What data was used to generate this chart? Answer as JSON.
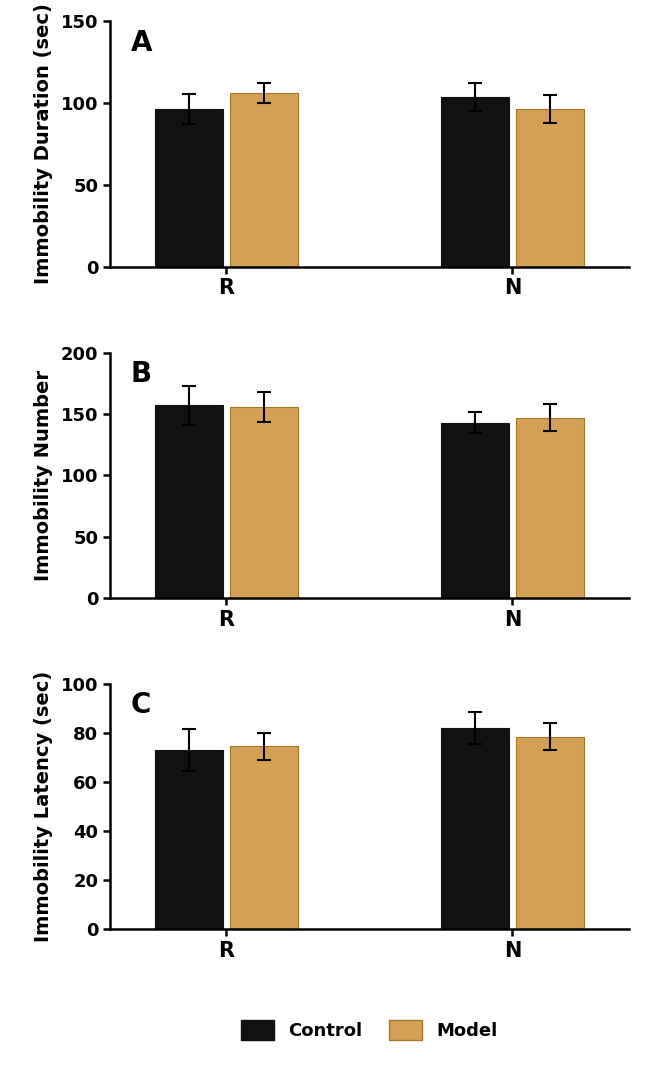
{
  "panels": [
    {
      "label": "A",
      "ylabel": "Immobility Duration (sec)",
      "ylim": [
        0,
        150
      ],
      "yticks": [
        0,
        50,
        100,
        150
      ],
      "groups": [
        "R",
        "N"
      ],
      "control_means": [
        96.5,
        103.5
      ],
      "model_means": [
        106.0,
        96.5
      ],
      "control_errors": [
        9.0,
        8.5
      ],
      "model_errors": [
        6.0,
        8.5
      ]
    },
    {
      "label": "B",
      "ylabel": "Immobility Number",
      "ylim": [
        0,
        200
      ],
      "yticks": [
        0,
        50,
        100,
        150,
        200
      ],
      "groups": [
        "R",
        "N"
      ],
      "control_means": [
        157.0,
        143.0
      ],
      "model_means": [
        155.5,
        147.0
      ],
      "control_errors": [
        16.0,
        8.5
      ],
      "model_errors": [
        12.0,
        11.0
      ]
    },
    {
      "label": "C",
      "ylabel": "Immobility Latency (sec)",
      "ylim": [
        0,
        100
      ],
      "yticks": [
        0,
        20,
        40,
        60,
        80,
        100
      ],
      "groups": [
        "R",
        "N"
      ],
      "control_means": [
        73.0,
        82.0
      ],
      "model_means": [
        74.5,
        78.5
      ],
      "control_errors": [
        8.5,
        6.5
      ],
      "model_errors": [
        5.5,
        5.5
      ]
    }
  ],
  "control_color": "#111111",
  "model_color": "#D4A055",
  "model_edge_color": "#A07828",
  "bar_width": 0.38,
  "group_centers": [
    1.0,
    2.6
  ],
  "xlim": [
    0.35,
    3.25
  ],
  "legend_labels": [
    "Control",
    "Model"
  ],
  "background_color": "#ffffff",
  "ylabel_fontsize": 14,
  "tick_fontsize": 13,
  "panel_label_fontsize": 20,
  "legend_fontsize": 13,
  "xtick_fontsize": 15
}
